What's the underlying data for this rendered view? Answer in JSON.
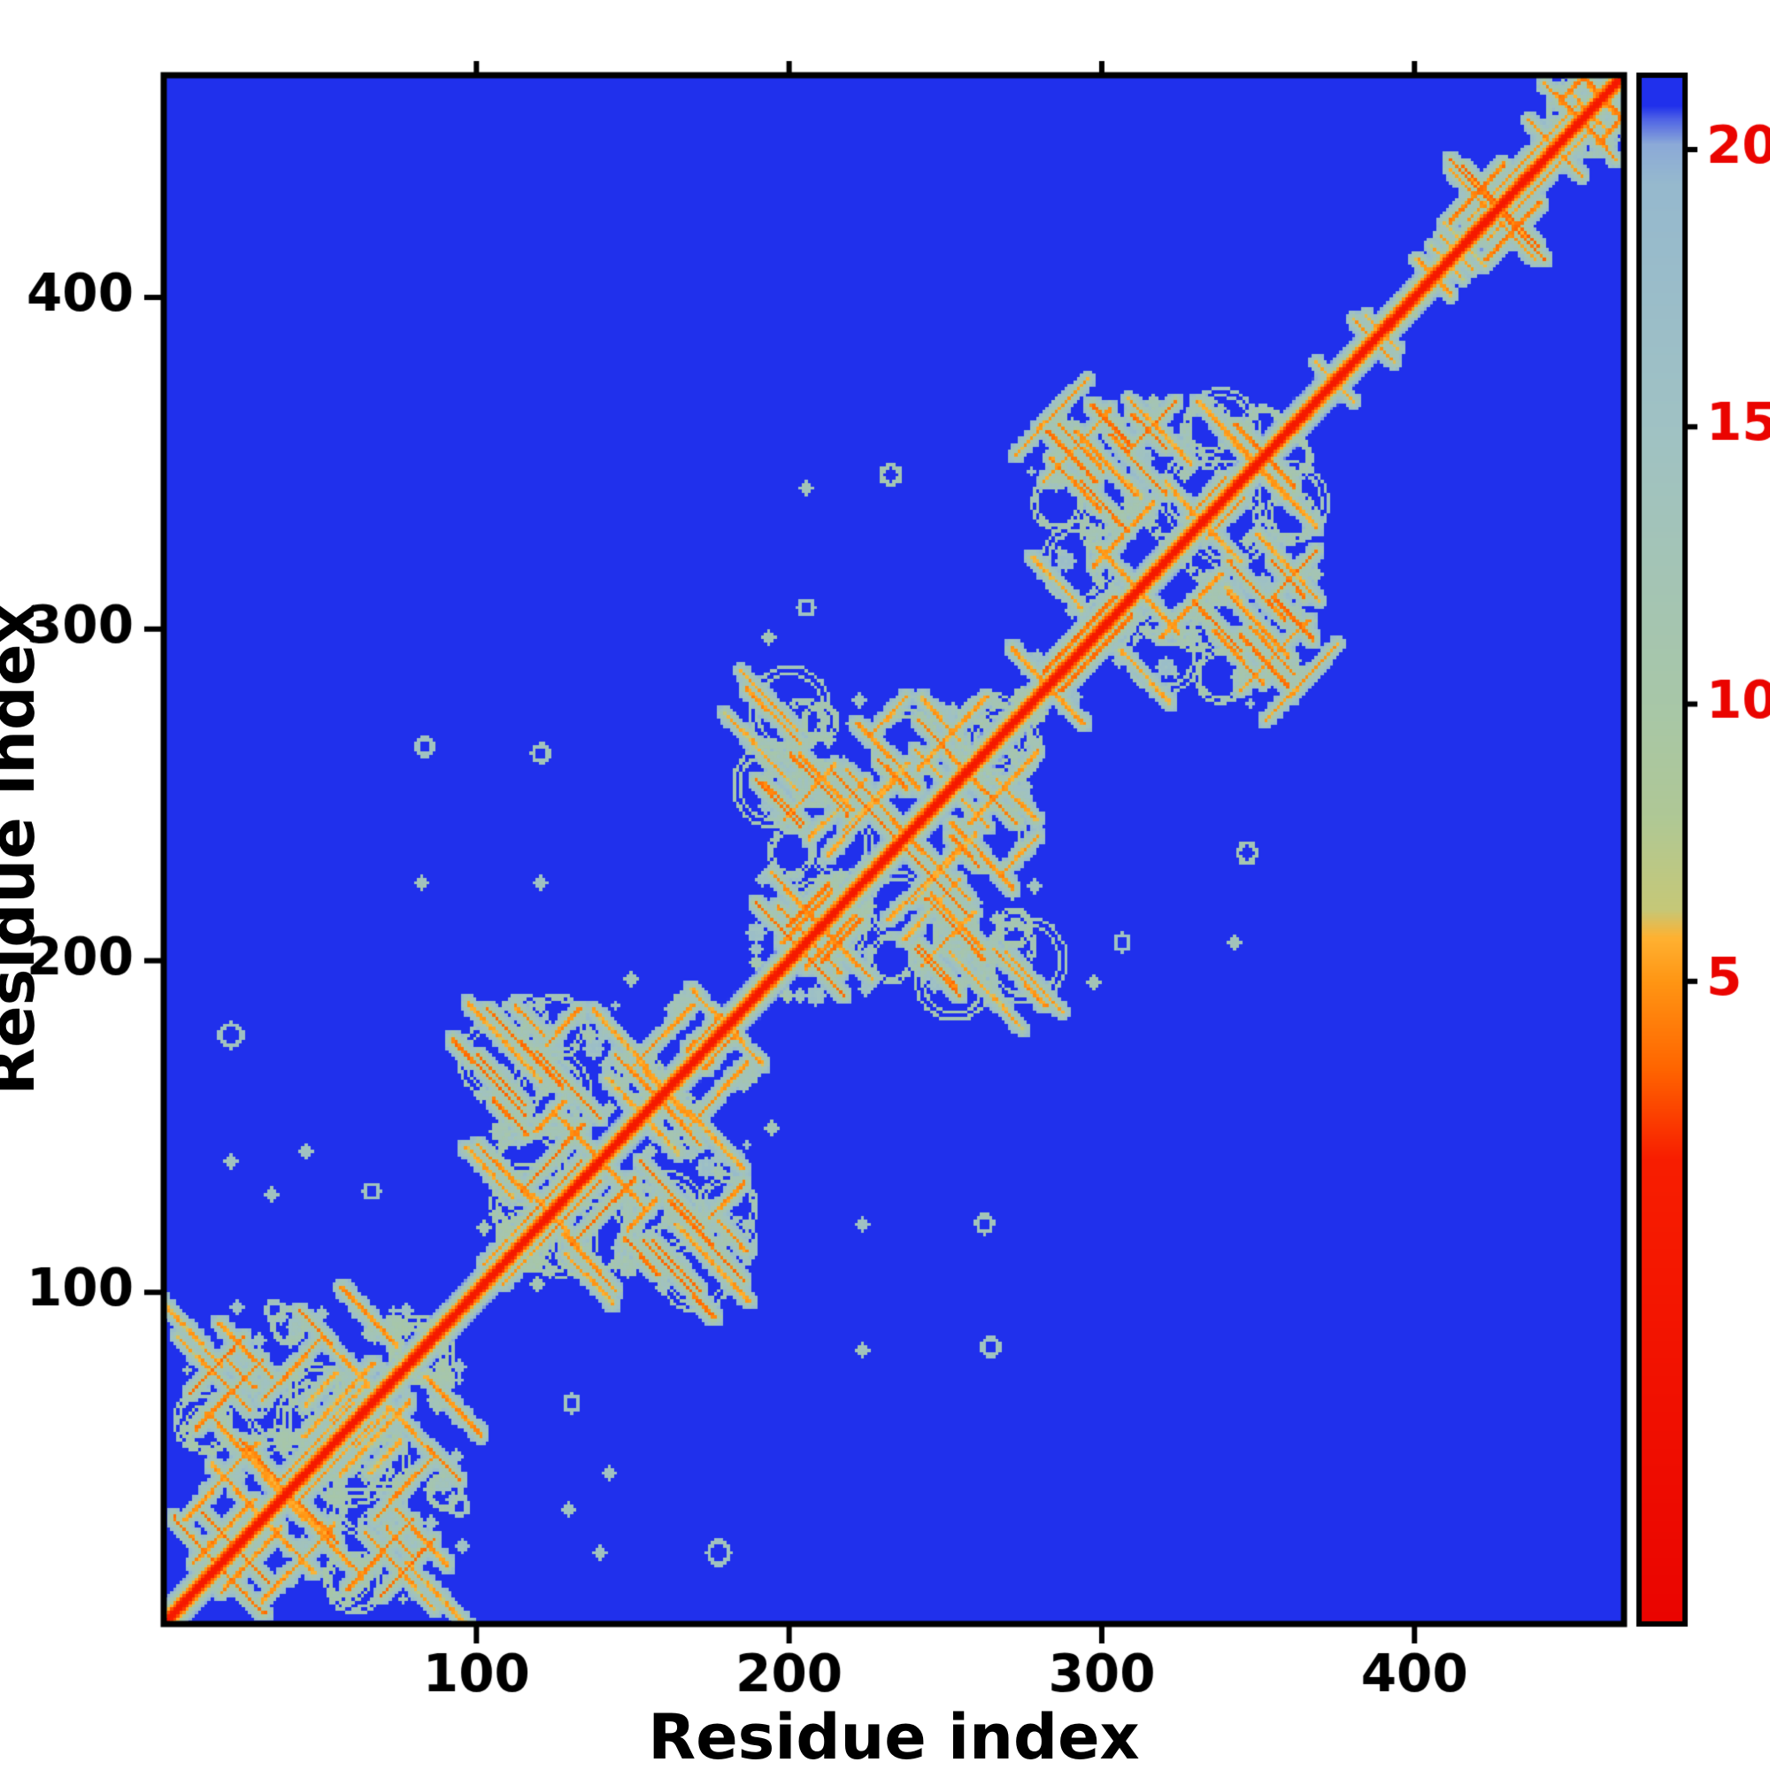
{
  "figure": {
    "background": "#ffffff",
    "axis_color": "#000000"
  },
  "chart_data": {
    "type": "heatmap",
    "title": "",
    "xlabel": "Residue index",
    "ylabel": "Residue index",
    "x_range": [
      0,
      467
    ],
    "y_range": [
      0,
      467
    ],
    "x_ticks": [
      100,
      200,
      300,
      400
    ],
    "y_ticks": [
      100,
      200,
      300,
      400
    ],
    "grid": false,
    "colorbar": {
      "position": "right",
      "ticks": [
        20,
        15,
        10,
        5
      ],
      "high_color": "#2030ec",
      "low_color": "#e80000"
    },
    "colormap_stops": [
      {
        "v": -8.0,
        "color": "#e80000"
      },
      {
        "v": 1.8,
        "color": "#f81e00"
      },
      {
        "v": 3.4,
        "color": "#ff6400"
      },
      {
        "v": 5.0,
        "color": "#ff9614"
      },
      {
        "v": 5.8,
        "color": "#ffb232"
      },
      {
        "v": 6.3,
        "color": "#c6c878"
      },
      {
        "v": 8.0,
        "color": "#afc896"
      },
      {
        "v": 10.0,
        "color": "#a8c7a8"
      },
      {
        "v": 15.0,
        "color": "#a0c2c4"
      },
      {
        "v": 19.4,
        "color": "#96b9ce"
      },
      {
        "v": 20.1,
        "color": "#8caad8"
      },
      {
        "v": 20.55,
        "color": "#5064e6"
      },
      {
        "v": 20.8,
        "color": "#2030ec"
      },
      {
        "v": 30.0,
        "color": "#2030ec"
      }
    ],
    "matrix": {
      "size": 467,
      "symmetric": true,
      "background_value": 22,
      "diagonal_value": 0,
      "description": "Residue-residue distance/contact map: red main diagonal, dense contact domains along the diagonal, sparse off-diagonal contacts, blue elsewhere",
      "domains": [
        [
          4,
          100
        ],
        [
          99,
          189
        ],
        [
          186,
          282
        ],
        [
          275,
          370
        ],
        [
          415,
          437
        ],
        [
          437,
          467
        ]
      ],
      "diagonal_band_extension": [
        370,
        415
      ],
      "off_diagonal_contacts": [
        [
          21,
          139
        ],
        [
          21,
          177
        ],
        [
          34,
          129
        ],
        [
          35,
          94
        ],
        [
          45,
          142
        ],
        [
          66,
          130
        ],
        [
          82,
          223
        ],
        [
          83,
          264
        ],
        [
          120,
          223
        ],
        [
          120,
          262
        ],
        [
          149,
          194
        ],
        [
          193,
          262
        ],
        [
          193,
          297
        ],
        [
          205,
          306
        ],
        [
          205,
          342
        ],
        [
          232,
          346
        ]
      ],
      "texture_seed": 1234
    }
  }
}
